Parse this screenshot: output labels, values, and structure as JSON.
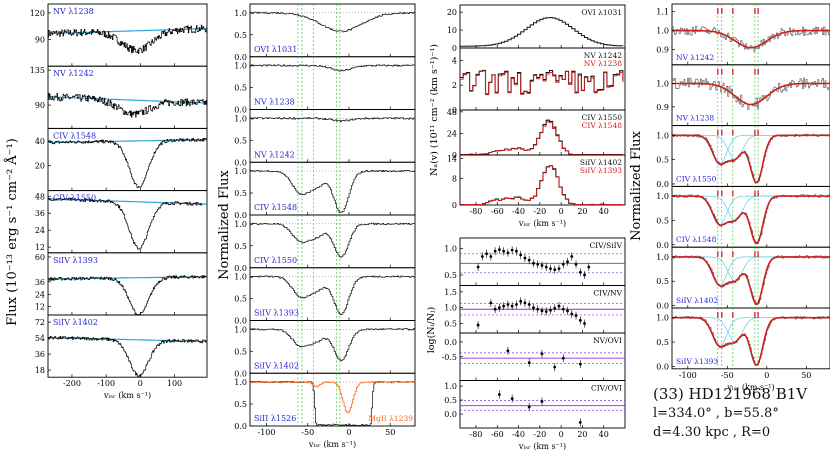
{
  "figure": {
    "panel1": {
      "ylabel": "Flux (10⁻¹³ erg s⁻¹ cm⁻² Å⁻¹)",
      "xlabel": "vₗₛᵣ (km s⁻¹)",
      "xticks": [
        "-200",
        "-100",
        "0",
        "100"
      ],
      "rows": [
        {
          "label": "NV λ1238",
          "yticks": [
            "120",
            "90"
          ]
        },
        {
          "label": "NV λ1242",
          "yticks": [
            "135",
            "90"
          ]
        },
        {
          "label": "CIV λ1548",
          "yticks": [
            "40",
            "20"
          ]
        },
        {
          "label": "CIV λ1550",
          "yticks": [
            "48",
            "36",
            "24",
            "12"
          ]
        },
        {
          "label": "SiIV λ1393",
          "yticks": [
            "60",
            "36",
            "24",
            "12"
          ]
        },
        {
          "label": "SiIV λ1402",
          "yticks": [
            "72",
            "54",
            "36",
            "18"
          ]
        }
      ]
    },
    "panel2": {
      "ylabel": "Normalized Flux",
      "xlabel": "vₗₛᵣ (km s⁻¹)",
      "xticks": [
        "-100",
        "-50",
        "0",
        "50"
      ],
      "yticks": [
        "0.0",
        "0.5",
        "1.0"
      ],
      "rows": [
        {
          "label": "OVI λ1031"
        },
        {
          "label": "NV λ1238"
        },
        {
          "label": "NV λ1242"
        },
        {
          "label": "CIV λ1548"
        },
        {
          "label": "CIV λ1550"
        },
        {
          "label": "SiIV λ1393"
        },
        {
          "label": "SiIV λ1402"
        },
        {
          "label": "SiII λ1526",
          "label2": "MgII λ1239"
        }
      ]
    },
    "panel3": {
      "ylabel": "Nₐ(v) (10¹¹ cm⁻² (km s⁻¹)⁻¹)",
      "xlabel": "vₗₛᵣ (km s⁻¹)",
      "xticks": [
        "-80",
        "-60",
        "-40",
        "-20",
        "0",
        "20",
        "40"
      ],
      "rows": [
        {
          "labels": [
            "OVI λ1031"
          ],
          "yticks": [
            "20",
            "10",
            "0"
          ]
        },
        {
          "labels": [
            "NV λ1242",
            "NV λ1238"
          ],
          "yticks": [
            "4",
            "2",
            "0"
          ]
        },
        {
          "labels": [
            "CIV λ1550",
            "CIV λ1548"
          ],
          "yticks": [
            "48",
            "24",
            "0"
          ]
        },
        {
          "labels": [
            "SiIV λ1402",
            "SiIV λ1393"
          ],
          "yticks": [
            "14",
            "8",
            "0"
          ]
        }
      ]
    },
    "panel4": {
      "ylabel": "log(Nᵢ/Nⱼ)",
      "xlabel": "vₗₛᵣ (km s⁻¹)",
      "xticks": [
        "-80",
        "-60",
        "-40",
        "-20",
        "0",
        "20",
        "40"
      ],
      "rows": [
        {
          "label": "CIV/SiIV",
          "yticks": [
            "1.0",
            "0.5"
          ]
        },
        {
          "label": "CIV/NV",
          "yticks": [
            "1.5",
            "1.0",
            "0.5"
          ]
        },
        {
          "label": "NV/OVI",
          "yticks": [
            "0.0",
            "-0.5"
          ]
        },
        {
          "label": "CIV/OVI",
          "yticks": [
            "1.0",
            "0.5",
            "0.0"
          ]
        }
      ]
    },
    "panel5": {
      "ylabel": "Normalized Flux",
      "xlabel": "vₗₛᵣ (km s⁻¹)",
      "xticks": [
        "-100",
        "-50",
        "0",
        "50"
      ],
      "rows": [
        {
          "label": "NV λ1242",
          "yticks": [
            "1.1",
            "1.0",
            "0.9"
          ]
        },
        {
          "label": "NV λ1238",
          "yticks": [
            "1.0",
            "0.9"
          ]
        },
        {
          "label": "CIV λ1550",
          "yticks": [
            "1.0",
            "0.5",
            "0.0"
          ]
        },
        {
          "label": "CIV λ1548",
          "yticks": [
            "1.0",
            "0.5",
            "0.0"
          ]
        },
        {
          "label": "SiIV λ1402",
          "yticks": [
            "1.0",
            "0.5",
            "0.0"
          ]
        },
        {
          "label": "SiIV λ1393",
          "yticks": [
            "1.0",
            "0.5",
            "0.0"
          ]
        }
      ]
    }
  },
  "info": {
    "title": "(33) HD121968 B1V",
    "coords": "l=334.0° , b=55.8°",
    "params": "d=4.30 kpc , R=0"
  },
  "colors": {
    "axis": "#000000",
    "spectrum": "#111111",
    "continuum": "#2aa6d8",
    "fit": "#cc2020",
    "components": "#5fc9e8",
    "marker": "#22bb22",
    "label": "#2a2ad6",
    "label_red": "#e01818",
    "mgii": "#ff6a1a",
    "purple": "#8a2be2"
  },
  "chart_data": [
    {
      "type": "line",
      "title": "Flux vs velocity (6 transitions)",
      "xlabel": "vLSR (km s-1)",
      "ylabel": "Flux (10^-13 erg s-1 cm-2 A-1)",
      "xlim": [
        -270,
        195
      ],
      "series": [
        {
          "name": "NV 1238",
          "ylim": [
            60,
            130
          ],
          "continuum": 100,
          "min_depth": 78,
          "center": -10
        },
        {
          "name": "NV 1242",
          "ylim": [
            60,
            140
          ],
          "continuum": 96,
          "min_depth": 78,
          "center": -20
        },
        {
          "name": "CIV 1548",
          "ylim": [
            0,
            50
          ],
          "continuum": 40,
          "min_depth": 3,
          "center": -5
        },
        {
          "name": "CIV 1550",
          "ylim": [
            8,
            52
          ],
          "continuum": 44,
          "min_depth": 11,
          "center": -5
        },
        {
          "name": "SiIV 1393",
          "ylim": [
            4,
            64
          ],
          "continuum": 40,
          "min_depth": 4,
          "center": -5
        },
        {
          "name": "SiIV 1402",
          "ylim": [
            10,
            80
          ],
          "continuum": 52,
          "min_depth": 12,
          "center": -5
        }
      ]
    },
    {
      "type": "line",
      "title": "Normalized flux (8 transitions)",
      "xlabel": "vLSR (km s-1)",
      "ylabel": "Normalized Flux",
      "xlim": [
        -120,
        80
      ],
      "ylim": [
        0,
        1.2
      ],
      "markers_kms": [
        -62,
        -57,
        -43,
        -15,
        -11
      ],
      "series": [
        {
          "name": "OVI 1031",
          "min": 0.58
        },
        {
          "name": "NV 1238",
          "min": 0.88
        },
        {
          "name": "NV 1242",
          "min": 0.94
        },
        {
          "name": "CIV 1548",
          "min": 0.05
        },
        {
          "name": "CIV 1550",
          "min": 0.25
        },
        {
          "name": "SiIV 1393",
          "min": 0.15
        },
        {
          "name": "SiIV 1402",
          "min": 0.3
        },
        {
          "name": "SiII 1526",
          "min": 0.02
        },
        {
          "name": "MgII 1239",
          "min": 0.3
        }
      ]
    },
    {
      "type": "line",
      "title": "Apparent column density Na(v)",
      "xlabel": "vLSR (km s-1)",
      "xlim": [
        -95,
        60
      ],
      "series": [
        {
          "name": "OVI 1031",
          "peak": 16,
          "peak_v": -12
        },
        {
          "name": "NV 1242 / NV 1238",
          "peak": 2.5
        },
        {
          "name": "CIV 1550 / CIV 1548",
          "peak": 38,
          "peak_v": -13
        },
        {
          "name": "SiIV 1402 / SiIV 1393",
          "peak": 12,
          "peak_v": -12
        }
      ]
    },
    {
      "type": "scatter",
      "title": "Column density ratios",
      "xlabel": "vLSR (km s-1)",
      "xlim": [
        -95,
        60
      ],
      "series": [
        {
          "name": "CIV/SiIV",
          "ylim": [
            0.3,
            1.2
          ],
          "mean": 0.72,
          "x": [
            -78,
            -74,
            -70,
            -66,
            -62,
            -58,
            -54,
            -50,
            -46,
            -42,
            -38,
            -34,
            -30,
            -26,
            -22,
            -18,
            -14,
            -10,
            -6,
            -2,
            2,
            6,
            10,
            14,
            18,
            22,
            26
          ],
          "y": [
            0.65,
            0.85,
            0.9,
            0.85,
            0.95,
            0.98,
            0.95,
            0.92,
            0.97,
            0.95,
            0.88,
            0.82,
            0.78,
            0.72,
            0.7,
            0.68,
            0.65,
            0.62,
            0.6,
            0.62,
            0.7,
            0.75,
            0.85,
            0.7,
            0.55,
            0.5,
            0.65
          ]
        },
        {
          "name": "CIV/NV",
          "ylim": [
            0.2,
            1.7
          ],
          "mean": 0.95,
          "x": [
            -78,
            -66,
            -62,
            -58,
            -54,
            -50,
            -46,
            -42,
            -38,
            -34,
            -30,
            -26,
            -22,
            -18,
            -14,
            -10,
            -6,
            -2,
            2,
            6,
            10,
            14,
            18,
            22
          ],
          "y": [
            0.45,
            1.15,
            0.95,
            1.0,
            1.05,
            1.1,
            1.05,
            1.1,
            1.2,
            1.15,
            1.1,
            1.0,
            0.95,
            0.9,
            0.88,
            0.92,
            0.98,
            1.05,
            0.95,
            0.9,
            0.8,
            0.75,
            0.6,
            0.5
          ]
        },
        {
          "name": "NV/OVI",
          "ylim": [
            -1.3,
            0.3
          ],
          "mean": -0.55,
          "x": [
            -50,
            -30,
            -18,
            -6,
            2,
            18
          ],
          "y": [
            -0.3,
            -0.7,
            -0.4,
            -0.85,
            -0.55,
            -0.75
          ]
        },
        {
          "name": "CIV/OVI",
          "ylim": [
            -0.5,
            1.2
          ],
          "mean": 0.3,
          "x": [
            -58,
            -46,
            -30,
            -18,
            18
          ],
          "y": [
            0.7,
            0.55,
            0.25,
            0.45,
            -0.3
          ]
        }
      ]
    },
    {
      "type": "line",
      "title": "Normalized flux with component fits",
      "xlabel": "vLSR (km s-1)",
      "ylabel": "Normalized Flux",
      "xlim": [
        -120,
        80
      ],
      "components_kms": [
        -62,
        -57,
        -43,
        -15,
        -11
      ],
      "series": [
        {
          "name": "NV 1242",
          "ylim": [
            0.82,
            1.14
          ]
        },
        {
          "name": "NV 1238",
          "ylim": [
            0.82,
            1.08
          ]
        },
        {
          "name": "CIV 1550",
          "ylim": [
            -0.05,
            1.2
          ]
        },
        {
          "name": "CIV 1548",
          "ylim": [
            -0.05,
            1.2
          ]
        },
        {
          "name": "SiIV 1402",
          "ylim": [
            -0.05,
            1.2
          ]
        },
        {
          "name": "SiIV 1393",
          "ylim": [
            -0.05,
            1.2
          ]
        }
      ]
    }
  ]
}
